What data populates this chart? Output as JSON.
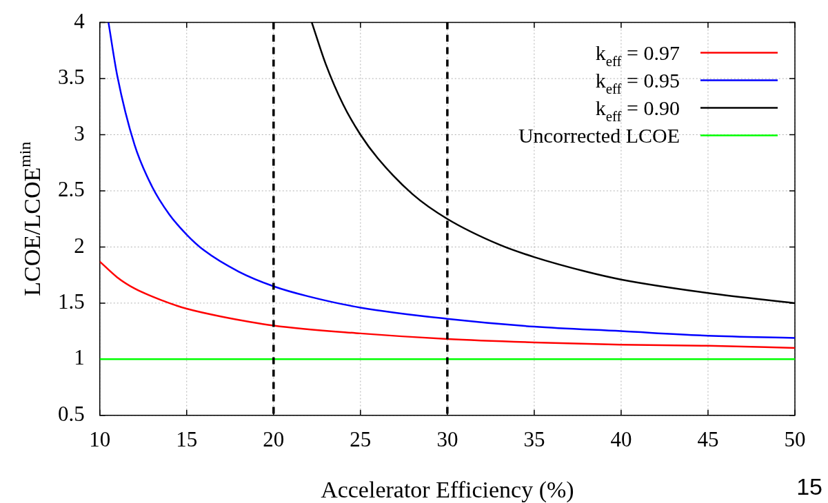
{
  "chart_data": {
    "type": "line",
    "xlabel": "Accelerator Efficiency (%)",
    "ylabel": "LCOE/LCOE$^{min}$",
    "xlim": [
      10,
      50
    ],
    "xticks": [
      10,
      15,
      20,
      25,
      30,
      35,
      40,
      45,
      50
    ],
    "ylim": [
      0.5,
      4
    ],
    "yticks": [
      0.5,
      1,
      1.5,
      2,
      2.5,
      3,
      3.5,
      4
    ],
    "grid": true,
    "legend": "top right",
    "marker": "none",
    "line_style": "solid",
    "series": [
      {
        "name": "k$_{eff}$ = 0.97",
        "color": "#ff0000",
        "x": [
          10,
          11,
          12,
          13,
          14,
          15,
          17,
          20,
          25,
          30,
          35,
          40,
          45,
          50
        ],
        "values": [
          1.87,
          1.73,
          1.63,
          1.56,
          1.5,
          1.45,
          1.38,
          1.3,
          1.23,
          1.18,
          1.15,
          1.13,
          1.12,
          1.1
        ]
      },
      {
        "name": "k$_{eff}$ = 0.95",
        "color": "#0000ff",
        "x": [
          10.5,
          11,
          12,
          13,
          14,
          15,
          16,
          18,
          20,
          22,
          25,
          30,
          35,
          40,
          45,
          50
        ],
        "values": [
          4,
          3.53,
          2.91,
          2.54,
          2.29,
          2.11,
          1.97,
          1.78,
          1.65,
          1.56,
          1.46,
          1.36,
          1.29,
          1.25,
          1.21,
          1.19
        ]
      },
      {
        "name": "k$_{eff}$ = 0.90",
        "color": "#000000",
        "x": [
          22.2,
          23,
          24,
          25,
          26,
          28,
          30,
          33,
          35,
          38,
          40,
          45,
          50
        ],
        "values": [
          4,
          3.63,
          3.27,
          3,
          2.79,
          2.47,
          2.25,
          2.02,
          1.91,
          1.78,
          1.71,
          1.59,
          1.5
        ]
      },
      {
        "name": "Uncorrected LCOE",
        "color": "#00ff00",
        "x": [
          10,
          50
        ],
        "values": [
          1,
          1
        ]
      }
    ],
    "ref_lines": [
      {
        "axis": "x",
        "value": 20,
        "color": "#000000",
        "line_style": "dashed"
      },
      {
        "axis": "x",
        "value": 30,
        "color": "#000000",
        "line_style": "dashed"
      }
    ],
    "annotations": [
      "15"
    ]
  }
}
